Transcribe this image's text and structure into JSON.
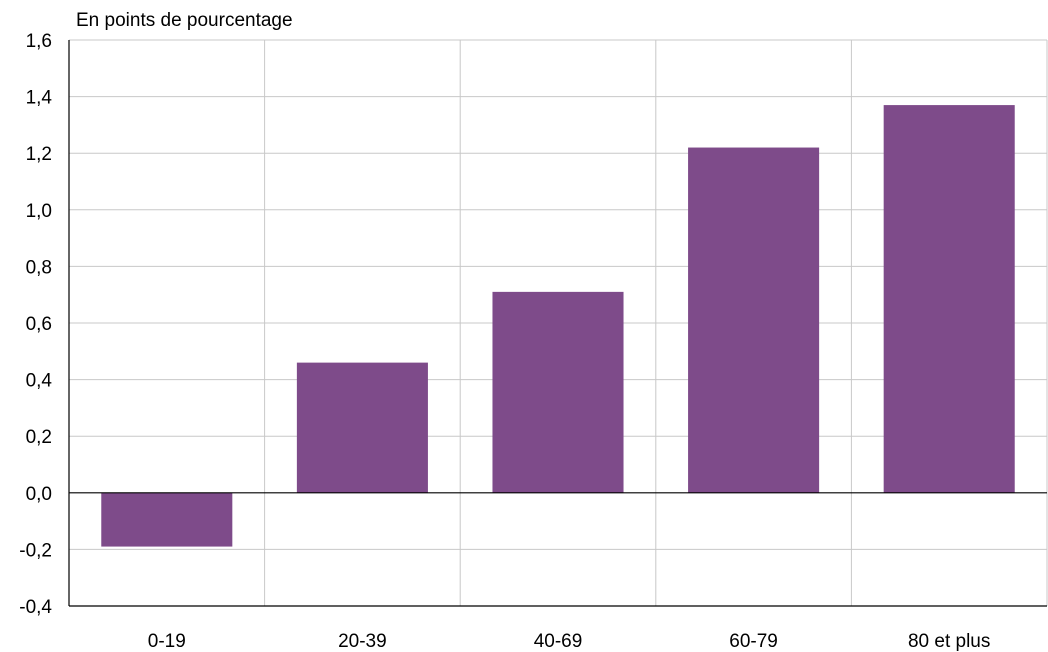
{
  "chart_data": {
    "type": "bar",
    "title": "",
    "unit_label": "En points de pourcentage",
    "xlabel": "",
    "ylabel": "",
    "categories": [
      "0-19",
      "20-39",
      "40-69",
      "60-79",
      "80 et plus"
    ],
    "values": [
      -0.19,
      0.46,
      0.71,
      1.22,
      1.37
    ],
    "ylim": [
      -0.4,
      1.6
    ],
    "yticks": [
      "-0,4",
      "-0,2",
      "0,0",
      "0,2",
      "0,4",
      "0,6",
      "0,8",
      "1,0",
      "1,2",
      "1,4",
      "1,6"
    ],
    "grid": true,
    "bar_color": "#7e4b8a"
  }
}
